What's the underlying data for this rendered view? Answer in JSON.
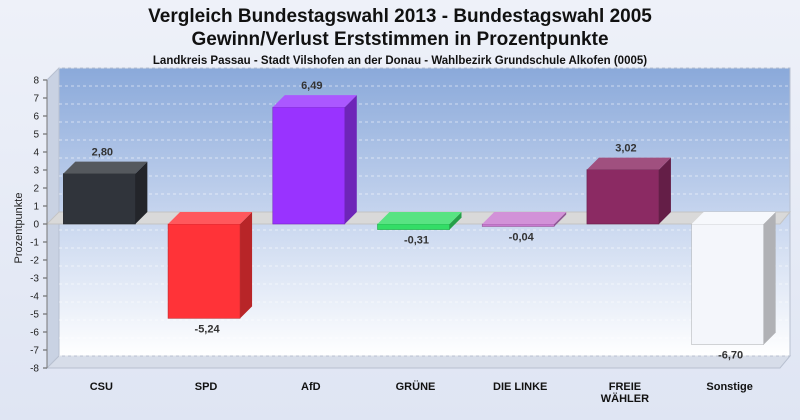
{
  "title_line1": "Vergleich Bundestagswahl 2013 - Bundestagswahl 2005",
  "title_line2": "Gewinn/Verlust Erststimmen in Prozentpunkte",
  "subtitle": "Landkreis Passau - Stadt Vilshofen an der Donau - Wahlbezirk Grundschule Alkofen (0005)",
  "chart_data": {
    "type": "bar",
    "ylabel": "Prozentpunkte",
    "xlabel": "",
    "ylim": [
      -8,
      8
    ],
    "yticks": [
      "8",
      "7",
      "6",
      "5",
      "4",
      "3",
      "2",
      "1",
      "0",
      "-1",
      "-2",
      "-3",
      "-4",
      "-5",
      "-6",
      "-7",
      "-8"
    ],
    "categories": [
      "CSU",
      "SPD",
      "AfD",
      "GRÜNE",
      "DIE LINKE",
      "FREIE WÄHLER",
      "Sonstige"
    ],
    "category_lines": [
      [
        "CSU"
      ],
      [
        "SPD"
      ],
      [
        "AfD"
      ],
      [
        "GRÜNE"
      ],
      [
        "DIE LINKE"
      ],
      [
        "FREIE",
        "WÄHLER"
      ],
      [
        "Sonstige"
      ]
    ],
    "values": [
      2.8,
      -5.24,
      6.49,
      -0.31,
      -0.04,
      3.02,
      -6.7
    ],
    "value_labels": [
      "2,80",
      "-5,24",
      "6,49",
      "-0,31",
      "-0,04",
      "3,02",
      "-6,70"
    ],
    "colors": [
      "#30343b",
      "#ff3338",
      "#9933ff",
      "#33dd66",
      "#c87ad0",
      "#8b2a63",
      "#f4f6fb"
    ],
    "grid": true,
    "legend": "none"
  }
}
